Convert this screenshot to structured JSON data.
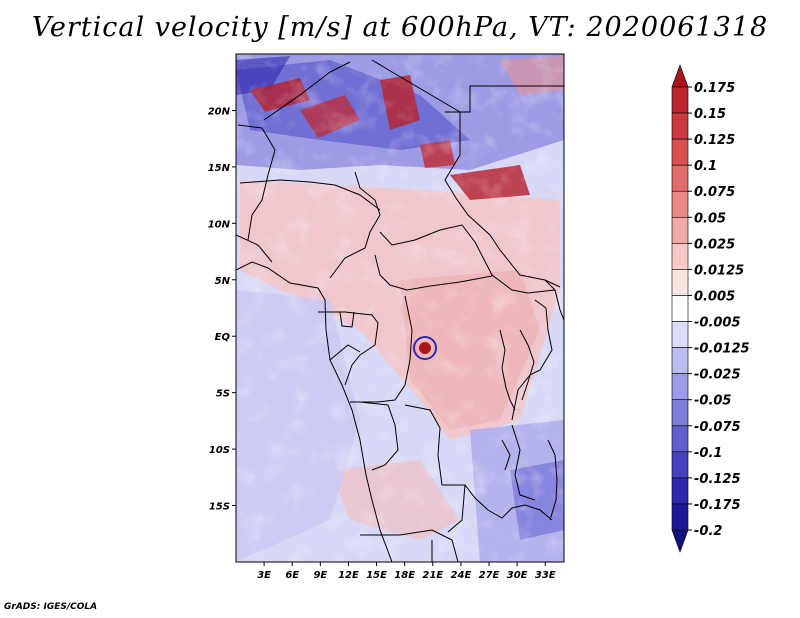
{
  "title": "Vertical velocity [m/s] at 600hPa, VT: 2020061318",
  "credit": "GrADS: IGES/COLA",
  "map": {
    "lon_range": [
      0,
      35
    ],
    "lat_range": [
      -20,
      25
    ],
    "lat_labels": [
      "20N",
      "15N",
      "10N",
      "5N",
      "EQ",
      "5S",
      "10S",
      "15S"
    ],
    "lat_values": [
      20,
      15,
      10,
      5,
      0,
      -5,
      -10,
      -15
    ],
    "lon_labels": [
      "3E",
      "6E",
      "9E",
      "12E",
      "15E",
      "18E",
      "21E",
      "24E",
      "27E",
      "30E",
      "33E"
    ],
    "lon_values": [
      3,
      6,
      9,
      12,
      15,
      18,
      21,
      24,
      27,
      30,
      33
    ]
  },
  "colorbar": {
    "labels": [
      "0.175",
      "0.15",
      "0.125",
      "0.1",
      "0.075",
      "0.05",
      "0.025",
      "0.0125",
      "0.005",
      "-0.005",
      "-0.0125",
      "-0.025",
      "-0.05",
      "-0.075",
      "-0.1",
      "-0.125",
      "-0.175",
      "-0.2"
    ],
    "colors": [
      "#a8161e",
      "#be2630",
      "#cd3a3f",
      "#d9504f",
      "#e26c69",
      "#ea8a86",
      "#f2aaa6",
      "#f8cac6",
      "#fce4e1",
      "#ffffff",
      "#dcdcf8",
      "#bdbcf0",
      "#9e9ce6",
      "#7f7cdb",
      "#625ed0",
      "#4742c0",
      "#2e28ad",
      "#1e1996",
      "#12107a"
    ]
  }
}
